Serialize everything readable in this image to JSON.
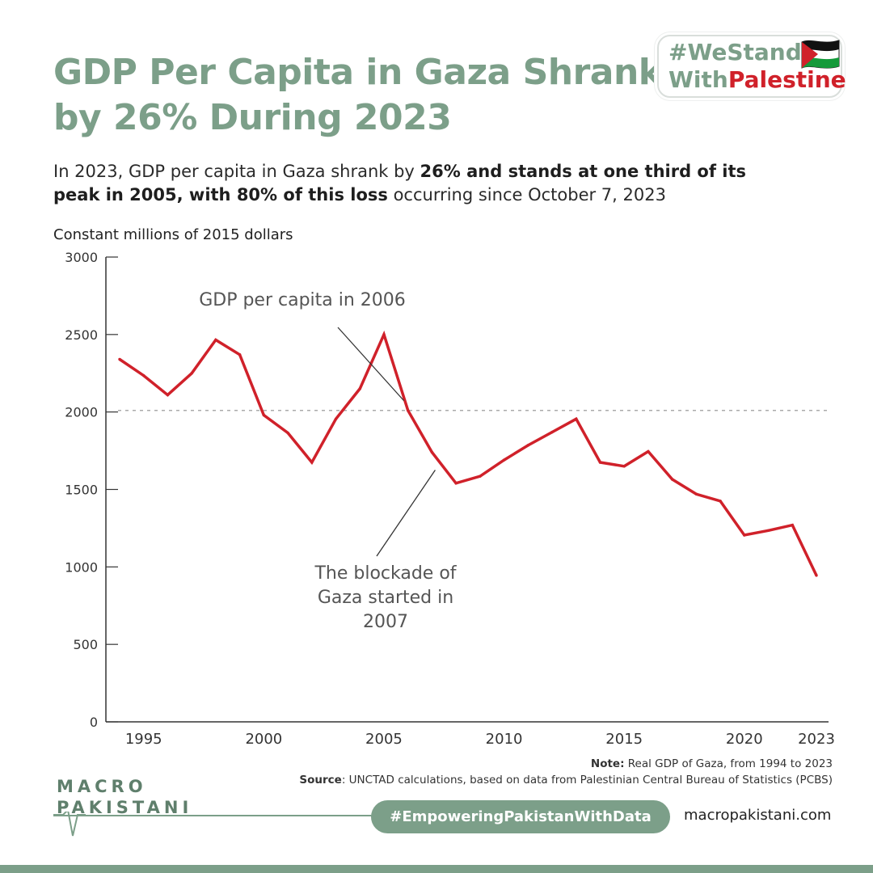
{
  "header": {
    "title": "GDP Per Capita in Gaza Shrank by 26% During 2023",
    "subtitle_part1": "In 2023, GDP per capita in Gaza shrank by ",
    "subtitle_bold": "26% and stands at one third of its peak in 2005, with 80% of this loss",
    "subtitle_part2": " occurring since October 7, 2023"
  },
  "badge": {
    "line1": "#WeStand",
    "line2_a": "With",
    "line2_b": "Palestine",
    "flag_icon": "palestine-flag-icon"
  },
  "chart_data": {
    "type": "line",
    "ylabel": "Constant millions of 2015 dollars",
    "ylim": [
      0,
      3000
    ],
    "xlim": [
      1994,
      2023
    ],
    "y_ticks": [
      0,
      500,
      1000,
      1500,
      2000,
      2500,
      3000
    ],
    "x_ticks": [
      1995,
      2000,
      2005,
      2010,
      2015,
      2020,
      2023
    ],
    "grid": false,
    "series": [
      {
        "color": "#d0212a",
        "x": [
          1994,
          1995,
          1996,
          1997,
          1998,
          1999,
          2000,
          2001,
          2002,
          2003,
          2004,
          2005,
          2006,
          2007,
          2008,
          2009,
          2010,
          2011,
          2012,
          2013,
          2014,
          2015,
          2016,
          2017,
          2018,
          2019,
          2020,
          2021,
          2022,
          2023
        ],
        "y": [
          2340,
          2235,
          2110,
          2250,
          2465,
          2370,
          1980,
          1865,
          1675,
          1955,
          2150,
          2500,
          2010,
          1740,
          1540,
          1585,
          1690,
          1785,
          1870,
          1955,
          1675,
          1650,
          1745,
          1565,
          1470,
          1425,
          1205,
          1235,
          1270,
          945
        ]
      }
    ],
    "reference_line": {
      "y": 2010,
      "style": "dashed",
      "color": "#aaaaaa"
    },
    "annotations": [
      {
        "text": "GDP per capita in 2006",
        "x": 2006,
        "y": 2010
      },
      {
        "text_lines": [
          "The blockade of",
          "Gaza started in",
          "2007"
        ],
        "x": 2007,
        "y": 1740
      }
    ]
  },
  "notes": {
    "note_label": "Note:",
    "note_text": " Real GDP of Gaza, from 1994 to 2023",
    "source_label": "Source",
    "source_text": ": UNCTAD calculations, based on data from Palestinian Central Bureau of Statistics (PCBS)"
  },
  "footer": {
    "logo_line1": "MACRO",
    "logo_line2": "PAKISTANI",
    "hashtag": "#EmpoweringPakistanWithData",
    "website": "macropakistani.com"
  }
}
